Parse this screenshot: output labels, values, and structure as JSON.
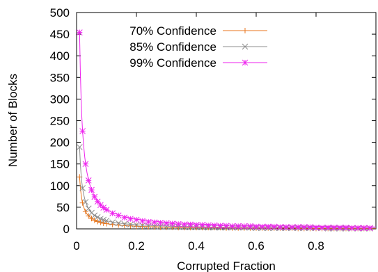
{
  "chart_data": {
    "type": "line",
    "xlabel": "Corrupted Fraction",
    "ylabel": "Number of Blocks",
    "xlim": [
      0,
      1
    ],
    "ylim": [
      0,
      500
    ],
    "x_ticks": [
      0,
      0.2,
      0.4,
      0.6,
      0.8
    ],
    "x_tick_labels": [
      "0",
      "0.2",
      "0.4",
      "0.6",
      "0.8"
    ],
    "y_ticks": [
      0,
      50,
      100,
      150,
      200,
      250,
      300,
      350,
      400,
      450,
      500
    ],
    "y_tick_labels": [
      "0",
      "50",
      "100",
      "150",
      "200",
      "250",
      "300",
      "350",
      "400",
      "450",
      "500"
    ],
    "grid": false,
    "legend_position": "top-center",
    "series": [
      {
        "name": "70% Confidence",
        "color": "#e8761d",
        "marker": "plus",
        "confidence": 0.7,
        "x": [
          0.01,
          0.02,
          0.03,
          0.04,
          0.05,
          0.06,
          0.07,
          0.08,
          0.09,
          0.1,
          0.12,
          0.14,
          0.16,
          0.18,
          0.2,
          0.22,
          0.24,
          0.26,
          0.28,
          0.3,
          0.32,
          0.34,
          0.36,
          0.38,
          0.4,
          0.42,
          0.44,
          0.46,
          0.48,
          0.5,
          0.52,
          0.54,
          0.56,
          0.58,
          0.6,
          0.62,
          0.64,
          0.66,
          0.68,
          0.7,
          0.72,
          0.74,
          0.76,
          0.78,
          0.8,
          0.82,
          0.84,
          0.86,
          0.88,
          0.9,
          0.92,
          0.94,
          0.96,
          0.98
        ],
        "values": [
          120,
          60,
          40,
          30,
          24,
          20,
          17,
          15,
          13,
          12,
          10,
          9,
          8,
          7,
          6,
          5,
          5,
          5,
          4,
          4,
          4,
          3,
          3,
          3,
          3,
          3,
          3,
          3,
          3,
          2,
          2,
          2,
          2,
          2,
          2,
          2,
          2,
          2,
          2,
          2,
          2,
          1,
          1,
          1,
          1,
          1,
          1,
          1,
          1,
          1,
          1,
          1,
          1,
          1
        ]
      },
      {
        "name": "85% Confidence",
        "color": "#8c8c8c",
        "marker": "cross",
        "confidence": 0.85,
        "x": [
          0.01,
          0.02,
          0.03,
          0.04,
          0.05,
          0.06,
          0.07,
          0.08,
          0.09,
          0.1,
          0.12,
          0.14,
          0.16,
          0.18,
          0.2,
          0.22,
          0.24,
          0.26,
          0.28,
          0.3,
          0.32,
          0.34,
          0.36,
          0.38,
          0.4,
          0.42,
          0.44,
          0.46,
          0.48,
          0.5,
          0.52,
          0.54,
          0.56,
          0.58,
          0.6,
          0.62,
          0.64,
          0.66,
          0.68,
          0.7,
          0.72,
          0.74,
          0.76,
          0.78,
          0.8,
          0.82,
          0.84,
          0.86,
          0.88,
          0.9,
          0.92,
          0.94,
          0.96,
          0.98
        ],
        "values": [
          189,
          94,
          62,
          47,
          37,
          31,
          27,
          23,
          21,
          19,
          15,
          13,
          11,
          10,
          9,
          8,
          7,
          6,
          6,
          5,
          5,
          5,
          4,
          4,
          4,
          4,
          3,
          3,
          3,
          3,
          3,
          3,
          3,
          3,
          2,
          2,
          2,
          2,
          2,
          2,
          2,
          2,
          2,
          2,
          2,
          2,
          1,
          1,
          1,
          1,
          1,
          1,
          1,
          1
        ]
      },
      {
        "name": "99% Confidence",
        "color": "#ee22ee",
        "marker": "star",
        "confidence": 0.99,
        "x": [
          0.01,
          0.02,
          0.03,
          0.04,
          0.05,
          0.06,
          0.07,
          0.08,
          0.09,
          0.1,
          0.12,
          0.14,
          0.16,
          0.18,
          0.2,
          0.22,
          0.24,
          0.26,
          0.28,
          0.3,
          0.32,
          0.34,
          0.36,
          0.38,
          0.4,
          0.42,
          0.44,
          0.46,
          0.48,
          0.5,
          0.52,
          0.54,
          0.56,
          0.58,
          0.6,
          0.62,
          0.64,
          0.66,
          0.68,
          0.7,
          0.72,
          0.74,
          0.76,
          0.78,
          0.8,
          0.82,
          0.84,
          0.86,
          0.88,
          0.9,
          0.92,
          0.94,
          0.96,
          0.98
        ],
        "values": [
          454,
          226,
          150,
          112,
          90,
          74,
          63,
          55,
          49,
          44,
          36,
          31,
          26,
          23,
          21,
          18,
          16,
          15,
          14,
          13,
          12,
          11,
          10,
          10,
          9,
          9,
          8,
          8,
          7,
          7,
          6,
          6,
          6,
          6,
          5,
          5,
          5,
          5,
          4,
          4,
          4,
          4,
          4,
          4,
          3,
          3,
          3,
          3,
          3,
          3,
          2,
          2,
          2,
          2
        ]
      }
    ]
  }
}
